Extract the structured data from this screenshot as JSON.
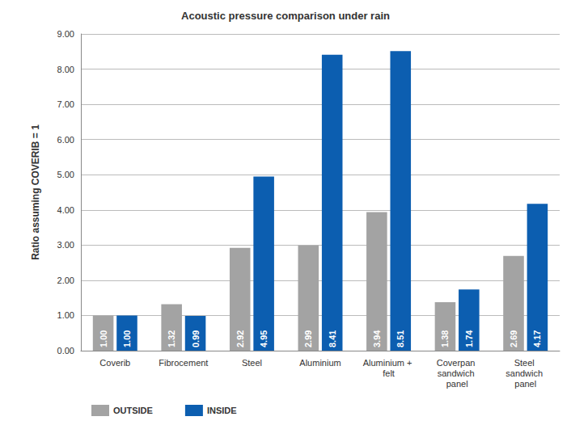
{
  "chart_data": {
    "type": "bar",
    "title": "Acoustic pressure comparison under rain",
    "y_label": "Ratio assuming COVERIB = 1",
    "categories": [
      "Coverib",
      "Fibrocement",
      "Steel",
      "Aluminium",
      "Aluminium + felt",
      "Coverpan sandwich panel",
      "Steel sandwich panel"
    ],
    "series": [
      {
        "name": "OUTSIDE",
        "color": "#a3a3a3",
        "values": [
          1.0,
          1.32,
          2.92,
          2.99,
          3.94,
          1.38,
          2.69
        ],
        "value_labels": [
          "1.00",
          "1.32",
          "2.92",
          "2.99",
          "3.94",
          "1.38",
          "2.69"
        ]
      },
      {
        "name": "INSIDE",
        "color": "#0c5eb0",
        "values": [
          1.0,
          0.99,
          4.95,
          8.41,
          8.51,
          1.74,
          4.17
        ],
        "value_labels": [
          "1.00",
          "0.99",
          "4.95",
          "8.41",
          "8.51",
          "1.74",
          "4.17"
        ]
      }
    ],
    "ylim": [
      0,
      9
    ],
    "yticks": [
      {
        "value": 0,
        "label": "0.00"
      },
      {
        "value": 1,
        "label": "1.00"
      },
      {
        "value": 2,
        "label": "2.00"
      },
      {
        "value": 3,
        "label": "3.00"
      },
      {
        "value": 4,
        "label": "4.00"
      },
      {
        "value": 5,
        "label": "5.00"
      },
      {
        "value": 6,
        "label": "6.00"
      },
      {
        "value": 7,
        "label": "7.00"
      },
      {
        "value": 8,
        "label": "8.00"
      },
      {
        "value": 9,
        "label": "9.00"
      }
    ],
    "grid": true,
    "legend": "bottom-left",
    "data_labels": true
  }
}
